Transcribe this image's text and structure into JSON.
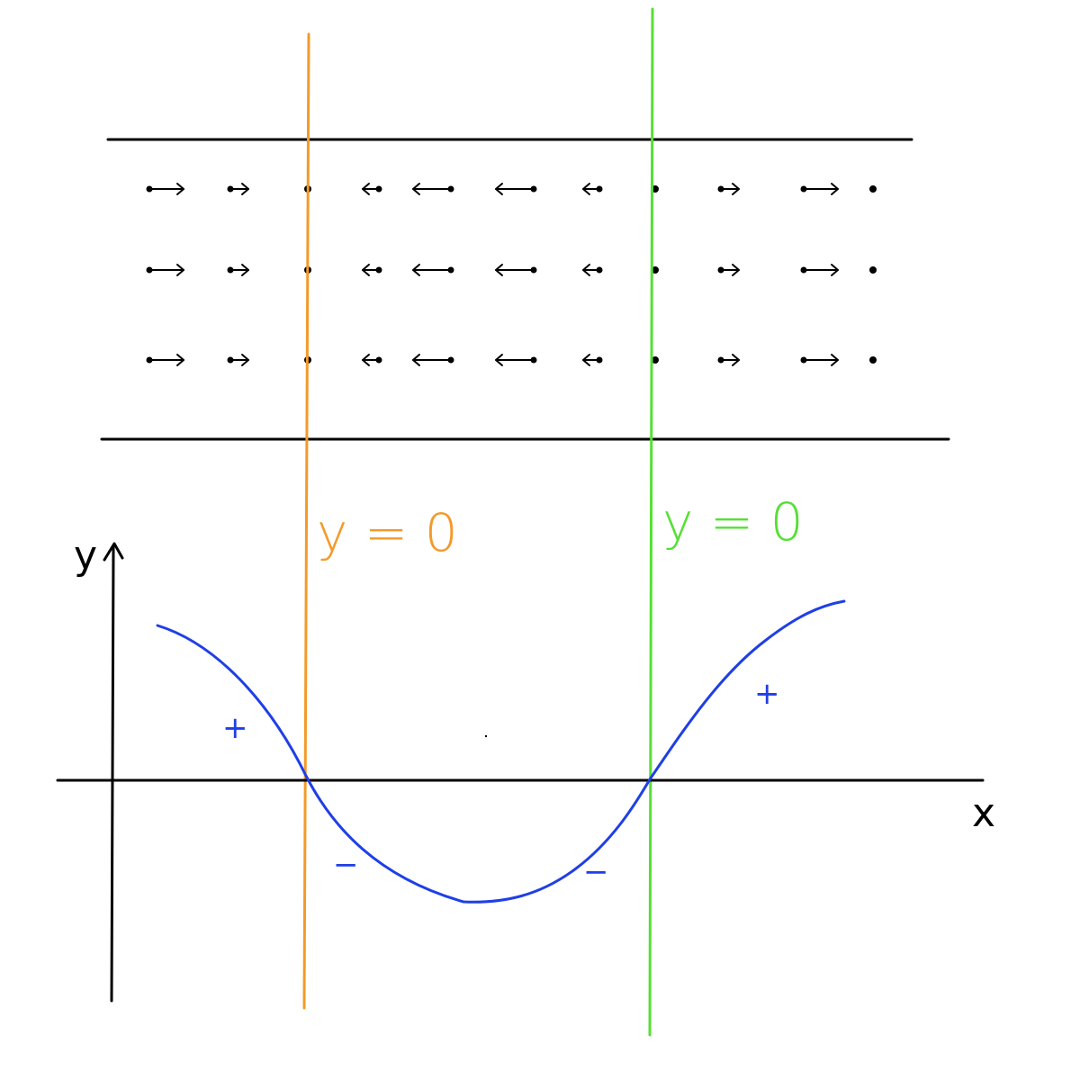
{
  "colors": {
    "ink": "#000000",
    "curve": "#1f3fe6",
    "orange_line": "#f39a2a",
    "green_line": "#55e034"
  },
  "labels": {
    "orange_eq": "y = 0",
    "green_eq": "y = 0",
    "y_axis": "y",
    "x_axis": "x",
    "plus_left": "+",
    "plus_right": "+",
    "minus_left": "−",
    "minus_right": "−"
  },
  "arrow_rows": [
    [
      "right-long",
      "right-short",
      "dot",
      "left-short",
      "left-long",
      "left-long",
      "left-short",
      "dot",
      "right-short",
      "right-long",
      "dot"
    ],
    [
      "right-long",
      "right-short",
      "dot",
      "left-short",
      "left-long",
      "left-long",
      "left-short",
      "dot",
      "right-short",
      "right-long",
      "dot"
    ],
    [
      "right-long",
      "right-short",
      "dot",
      "left-short",
      "left-long",
      "left-long",
      "left-short",
      "dot",
      "right-short",
      "right-long",
      "dot"
    ]
  ],
  "icons": {
    "arrow": "arrow-icon",
    "dot": "dot-icon",
    "y_axis_arrow": "arrowhead-up-icon"
  }
}
